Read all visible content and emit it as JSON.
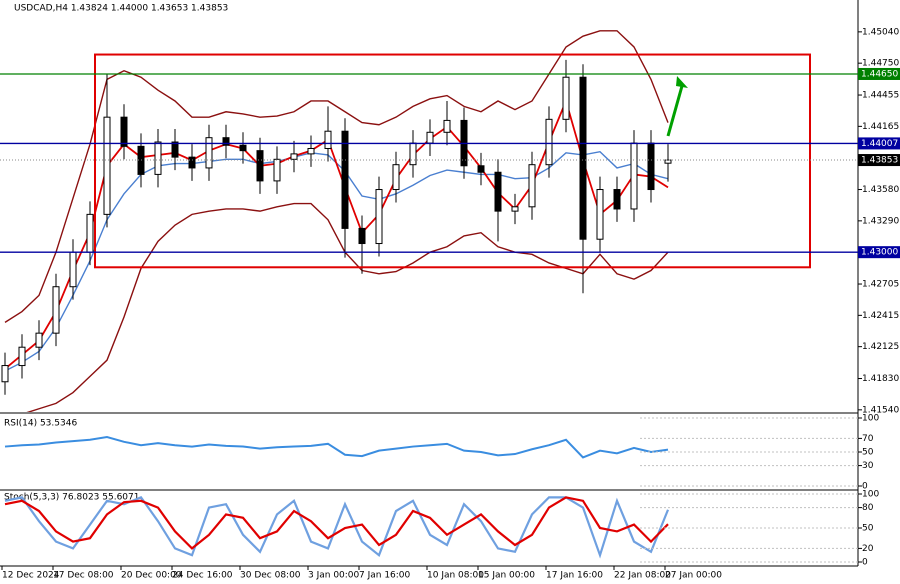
{
  "chart_data": [
    {
      "type": "candlestick",
      "title": "USDCAD,H4 1.43824 1.44000 1.43653 1.43853",
      "categories": [
        "12 Dec 2024",
        null,
        null,
        "17 Dec 08:00",
        null,
        null,
        null,
        "20 Dec 00:00",
        null,
        null,
        "24 Dec 16:00",
        null,
        null,
        null,
        "30 Dec 08:00",
        null,
        null,
        null,
        "3 Jan 00:00",
        null,
        null,
        "7 Jan 16:00",
        null,
        null,
        null,
        "10 Jan 08:00",
        null,
        null,
        "15 Jan 00:00",
        null,
        null,
        null,
        "17 Jan 16:00",
        null,
        null,
        null,
        "22 Jan 08:00",
        null,
        null,
        "27 Jan 00:00"
      ],
      "open": [
        1.418,
        1.4195,
        1.4212,
        1.4225,
        1.4268,
        1.43,
        1.4335,
        1.4425,
        1.4398,
        1.4372,
        1.4402,
        1.4388,
        1.4378,
        1.4406,
        1.4399,
        1.4394,
        1.4366,
        1.4386,
        1.4391,
        1.4396,
        1.4412,
        1.4322,
        1.4308,
        1.4358,
        1.4381,
        1.4401,
        1.4411,
        1.4422,
        1.438,
        1.4374,
        1.4338,
        1.4342,
        1.4381,
        1.4423,
        1.4462,
        1.4312,
        1.4358,
        1.434,
        1.4401,
        1.43824
      ],
      "high": [
        1.4207,
        1.4224,
        1.4237,
        1.428,
        1.4312,
        1.4347,
        1.4465,
        1.4437,
        1.441,
        1.4414,
        1.4414,
        1.44,
        1.4418,
        1.4418,
        1.4411,
        1.4406,
        1.4398,
        1.4403,
        1.4408,
        1.4435,
        1.4424,
        1.4334,
        1.437,
        1.4393,
        1.4413,
        1.4423,
        1.444,
        1.4434,
        1.4392,
        1.4386,
        1.4354,
        1.4393,
        1.4435,
        1.4478,
        1.4474,
        1.437,
        1.437,
        1.4413,
        1.4413,
        1.44
      ],
      "low": [
        1.4168,
        1.4183,
        1.42,
        1.4213,
        1.4256,
        1.4288,
        1.4323,
        1.4386,
        1.436,
        1.436,
        1.4376,
        1.4366,
        1.4366,
        1.4387,
        1.4382,
        1.4354,
        1.4354,
        1.4374,
        1.4379,
        1.4384,
        1.4295,
        1.428,
        1.4296,
        1.4346,
        1.4369,
        1.4389,
        1.4399,
        1.4368,
        1.4362,
        1.431,
        1.4326,
        1.433,
        1.4369,
        1.4411,
        1.4262,
        1.43,
        1.4328,
        1.4328,
        1.4346,
        1.43653
      ],
      "close": [
        1.4195,
        1.4212,
        1.4225,
        1.4268,
        1.43,
        1.4335,
        1.4425,
        1.4398,
        1.4372,
        1.4402,
        1.4388,
        1.4378,
        1.4406,
        1.4399,
        1.4394,
        1.4366,
        1.4386,
        1.4391,
        1.4396,
        1.4412,
        1.4322,
        1.4308,
        1.4358,
        1.4381,
        1.4401,
        1.4411,
        1.4422,
        1.438,
        1.4374,
        1.4338,
        1.4342,
        1.4381,
        1.4423,
        1.4462,
        1.4312,
        1.4358,
        1.434,
        1.4401,
        1.4358,
        1.43853
      ],
      "overlays": [
        {
          "color": "#8b1010",
          "values": [
            1.4235,
            1.4245,
            1.426,
            1.43,
            1.435,
            1.44,
            1.446,
            1.4468,
            1.4462,
            1.445,
            1.444,
            1.4425,
            1.4425,
            1.443,
            1.4428,
            1.4425,
            1.4426,
            1.443,
            1.444,
            1.444,
            1.443,
            1.442,
            1.4418,
            1.4425,
            1.4435,
            1.4442,
            1.4445,
            1.4435,
            1.443,
            1.444,
            1.4432,
            1.444,
            1.4465,
            1.449,
            1.45,
            1.4505,
            1.4505,
            1.449,
            1.446,
            1.442
          ]
        },
        {
          "color": "#8b1010",
          "values": [
            1.415,
            1.415,
            1.4155,
            1.416,
            1.417,
            1.4185,
            1.42,
            1.424,
            1.4285,
            1.431,
            1.4325,
            1.4335,
            1.4338,
            1.434,
            1.434,
            1.4338,
            1.4342,
            1.4345,
            1.4345,
            1.433,
            1.43,
            1.4283,
            1.428,
            1.4282,
            1.429,
            1.43,
            1.4305,
            1.4315,
            1.4318,
            1.4305,
            1.43,
            1.4298,
            1.429,
            1.4285,
            1.428,
            1.4298,
            1.428,
            1.4275,
            1.4283,
            1.43
          ]
        },
        {
          "color": "#4a7fd0",
          "values": [
            1.419,
            1.4198,
            1.4208,
            1.423,
            1.426,
            1.4292,
            1.433,
            1.4354,
            1.4372,
            1.438,
            1.4382,
            1.4382,
            1.4384,
            1.4386,
            1.4386,
            1.4382,
            1.4384,
            1.4388,
            1.4392,
            1.439,
            1.4375,
            1.4352,
            1.4349,
            1.4354,
            1.4362,
            1.4371,
            1.4376,
            1.4374,
            1.4372,
            1.4372,
            1.4368,
            1.4369,
            1.4378,
            1.4392,
            1.439,
            1.4393,
            1.4378,
            1.4382,
            1.4372,
            1.4368
          ]
        },
        {
          "color": "#e00000",
          "values": [
            1.4192,
            1.4205,
            1.4218,
            1.4245,
            1.4283,
            1.4318,
            1.438,
            1.44,
            1.4388,
            1.439,
            1.4392,
            1.4385,
            1.4394,
            1.44,
            1.4396,
            1.438,
            1.4382,
            1.4389,
            1.4394,
            1.4404,
            1.436,
            1.4318,
            1.4335,
            1.4368,
            1.439,
            1.4405,
            1.4416,
            1.4398,
            1.4378,
            1.4355,
            1.434,
            1.4362,
            1.4402,
            1.444,
            1.4385,
            1.4335,
            1.4348,
            1.4372,
            1.437,
            1.436
          ]
        }
      ],
      "ylim": [
        1.4152,
        1.45335
      ],
      "yticks": [
        {
          "value": 1.4504,
          "label": "1.45040"
        },
        {
          "value": 1.4475,
          "label": "1.44750"
        },
        1.44455,
        1.44165,
        {
          "value": 1.4358,
          "label": "1.43580"
        },
        {
          "value": 1.4329,
          "label": "1.43290"
        },
        1.42705,
        1.42415,
        1.42125,
        {
          "value": 1.4183,
          "label": "1.41830"
        },
        {
          "value": 1.4154,
          "label": "1.41540"
        }
      ],
      "levels": [
        {
          "value": 1.4465,
          "label": "1.44650",
          "color": "#008000"
        },
        {
          "value": 1.44007,
          "color": "#0000a0"
        },
        {
          "value": 1.43,
          "label": "1.43000",
          "color": "#0000a0"
        }
      ],
      "last_price": 1.43853,
      "box": {
        "top": 1.4483,
        "bottom": 1.4286,
        "color": "#e00000"
      }
    },
    {
      "type": "line",
      "title": "RSI(14) 53.5346",
      "color": "#3a8de0",
      "values": [
        58,
        60,
        61,
        64,
        66,
        68,
        72,
        65,
        60,
        63,
        60,
        58,
        61,
        59,
        58,
        55,
        57,
        58,
        59,
        62,
        46,
        44,
        52,
        55,
        58,
        60,
        62,
        52,
        50,
        45,
        47,
        54,
        60,
        68,
        42,
        52,
        48,
        56,
        50,
        53.5346
      ],
      "ylim": [
        0,
        100
      ],
      "yticks": [
        100,
        70,
        50,
        30,
        0
      ]
    },
    {
      "type": "line",
      "title": "Stoch(5,3,3) 76.8023 55.6071",
      "series": [
        {
          "color": "#6fa0e0",
          "values": [
            90,
            95,
            60,
            30,
            20,
            55,
            90,
            85,
            95,
            60,
            20,
            10,
            80,
            85,
            40,
            15,
            70,
            90,
            30,
            20,
            85,
            30,
            10,
            75,
            90,
            40,
            25,
            85,
            60,
            20,
            15,
            70,
            95,
            95,
            80,
            10,
            90,
            30,
            15,
            76.8023
          ]
        },
        {
          "color": "#e00000",
          "values": [
            85,
            90,
            75,
            45,
            30,
            35,
            70,
            88,
            90,
            80,
            45,
            20,
            40,
            70,
            65,
            35,
            45,
            75,
            60,
            35,
            50,
            55,
            25,
            40,
            75,
            65,
            40,
            55,
            70,
            45,
            25,
            40,
            80,
            95,
            90,
            50,
            45,
            55,
            30,
            55.6071
          ]
        }
      ],
      "ylim": [
        0,
        100
      ],
      "yticks": [
        100,
        80,
        50,
        20,
        0
      ]
    }
  ]
}
